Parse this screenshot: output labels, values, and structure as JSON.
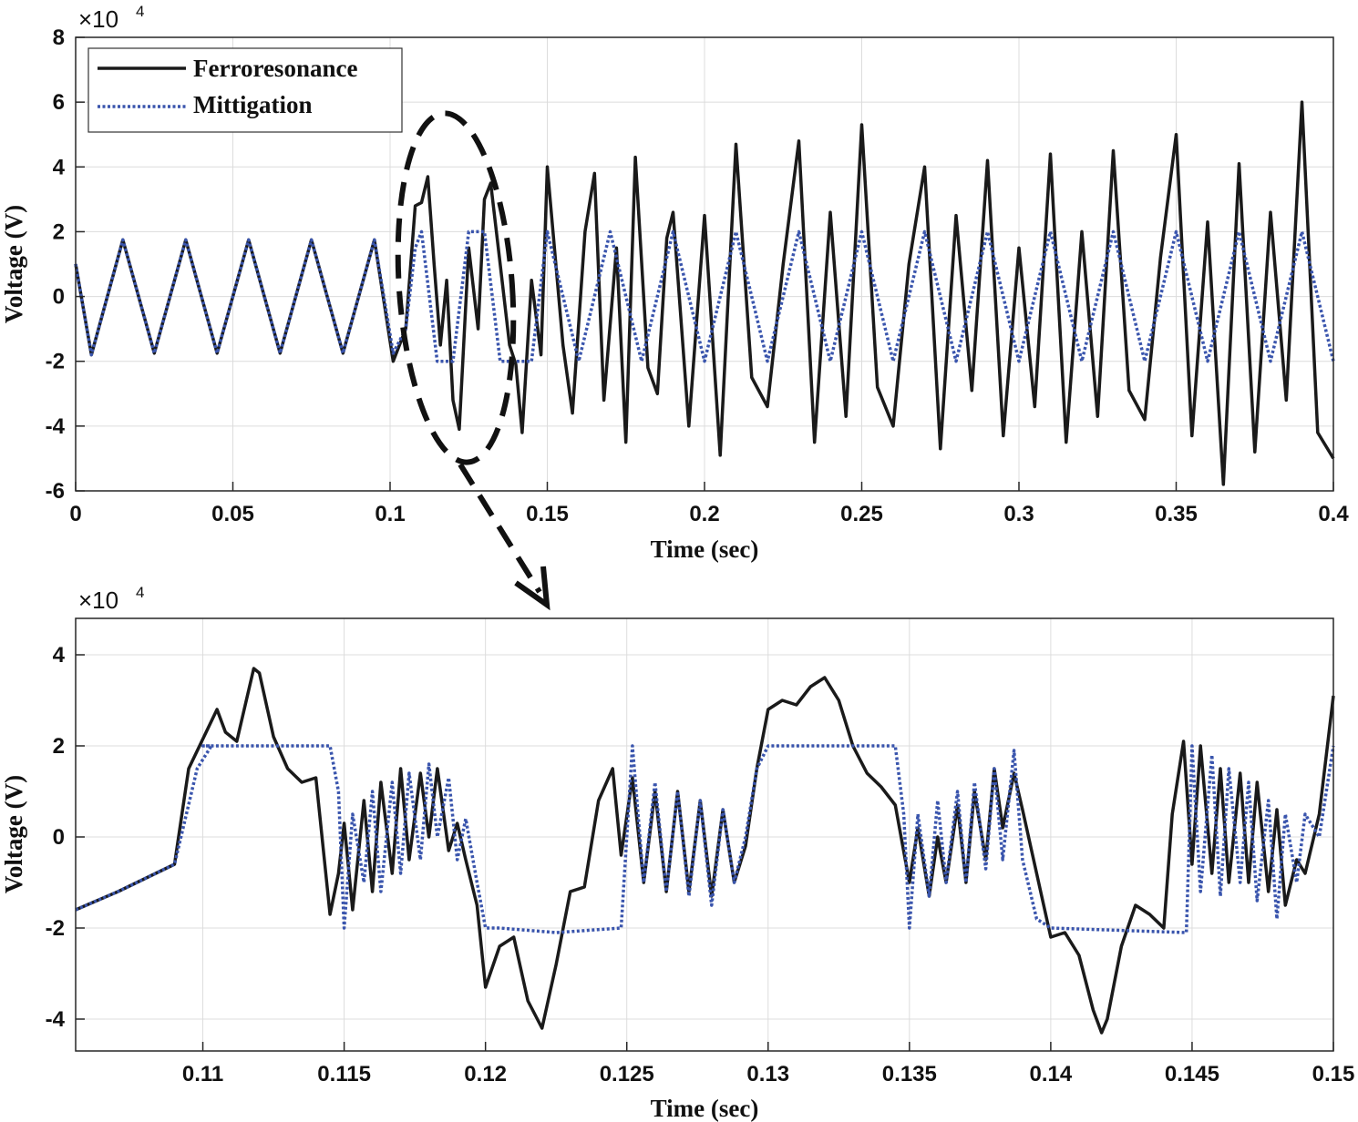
{
  "chart_data": [
    {
      "type": "line",
      "panel": "top",
      "title": "",
      "xlabel": "Time (sec)",
      "ylabel": "Voltage (V)",
      "y_exponent_base": "×10",
      "y_exponent_power": "4",
      "xlim": [
        0,
        0.4
      ],
      "ylim": [
        -6,
        8
      ],
      "xticks": [
        0,
        0.05,
        0.1,
        0.15,
        0.2,
        0.25,
        0.3,
        0.35,
        0.4
      ],
      "xtick_labels": [
        "0",
        "0.05",
        "0.1",
        "0.15",
        "0.2",
        "0.25",
        "0.3",
        "0.35",
        "0.4"
      ],
      "yticks": [
        -6,
        -4,
        -2,
        0,
        2,
        4,
        6,
        8
      ],
      "ytick_labels": [
        "-6",
        "-4",
        "-2",
        "0",
        "2",
        "4",
        "6",
        "8"
      ],
      "grid": true,
      "legend": {
        "position": "top-left",
        "entries": [
          "Ferroresonance",
          "Mittigation"
        ]
      },
      "series": [
        {
          "name": "Ferroresonance",
          "color": "#1a1a1a",
          "style": "solid",
          "x": [
            0,
            0.005,
            0.015,
            0.025,
            0.035,
            0.045,
            0.055,
            0.065,
            0.075,
            0.085,
            0.095,
            0.101,
            0.105,
            0.108,
            0.11,
            0.112,
            0.114,
            0.116,
            0.118,
            0.12,
            0.122,
            0.125,
            0.128,
            0.13,
            0.132,
            0.135,
            0.138,
            0.14,
            0.142,
            0.145,
            0.148,
            0.15,
            0.155,
            0.158,
            0.162,
            0.165,
            0.168,
            0.172,
            0.175,
            0.178,
            0.182,
            0.185,
            0.188,
            0.19,
            0.195,
            0.2,
            0.205,
            0.21,
            0.215,
            0.22,
            0.225,
            0.23,
            0.235,
            0.24,
            0.245,
            0.25,
            0.255,
            0.26,
            0.265,
            0.27,
            0.275,
            0.28,
            0.285,
            0.29,
            0.295,
            0.3,
            0.305,
            0.31,
            0.315,
            0.32,
            0.325,
            0.33,
            0.335,
            0.34,
            0.345,
            0.35,
            0.355,
            0.36,
            0.365,
            0.37,
            0.375,
            0.38,
            0.385,
            0.39,
            0.395,
            0.4
          ],
          "values": [
            1.0,
            -1.8,
            1.75,
            -1.75,
            1.75,
            -1.75,
            1.75,
            -1.75,
            1.75,
            -1.75,
            1.75,
            -2.0,
            -1.0,
            2.8,
            2.9,
            3.7,
            1.0,
            -1.5,
            0.5,
            -3.2,
            -4.1,
            1.5,
            -1.0,
            3.0,
            3.5,
            1.0,
            -1.5,
            -2.1,
            -4.2,
            0.5,
            -1.8,
            4.0,
            -1.5,
            -3.6,
            2.0,
            3.8,
            -3.2,
            1.5,
            -4.5,
            4.3,
            -2.2,
            -3.0,
            1.8,
            2.6,
            -4.0,
            2.5,
            -4.9,
            4.7,
            -2.5,
            -3.4,
            1.0,
            4.8,
            -4.5,
            2.6,
            -3.7,
            5.3,
            -2.8,
            -4.0,
            1.0,
            4.0,
            -4.7,
            2.5,
            -2.9,
            4.2,
            -4.3,
            1.5,
            -3.4,
            4.4,
            -4.5,
            2.0,
            -3.7,
            4.5,
            -2.9,
            -3.8,
            1.2,
            5.0,
            -4.3,
            2.3,
            -5.8,
            4.1,
            -4.8,
            2.6,
            -3.2,
            6.0,
            -4.2,
            -5.0
          ]
        },
        {
          "name": "Mittigation",
          "color": "#3a55ad",
          "style": "dotted",
          "x": [
            0,
            0.005,
            0.015,
            0.025,
            0.035,
            0.045,
            0.055,
            0.065,
            0.075,
            0.085,
            0.095,
            0.101,
            0.105,
            0.108,
            0.11,
            0.115,
            0.12,
            0.125,
            0.13,
            0.135,
            0.14,
            0.145,
            0.15,
            0.16,
            0.17,
            0.18,
            0.19,
            0.2,
            0.21,
            0.22,
            0.23,
            0.24,
            0.25,
            0.26,
            0.27,
            0.28,
            0.29,
            0.3,
            0.31,
            0.32,
            0.33,
            0.34,
            0.35,
            0.36,
            0.37,
            0.38,
            0.39,
            0.4
          ],
          "values": [
            1.0,
            -1.8,
            1.75,
            -1.75,
            1.75,
            -1.75,
            1.75,
            -1.75,
            1.75,
            -1.75,
            1.75,
            -1.75,
            -1.0,
            1.5,
            2.0,
            -2.0,
            -2.0,
            2.0,
            2.0,
            -2.0,
            -2.0,
            -2.0,
            2.0,
            -2.0,
            2.0,
            -2.0,
            2.0,
            -2.0,
            2.0,
            -2.0,
            2.0,
            -2.0,
            2.0,
            -2.0,
            2.0,
            -2.0,
            2.0,
            -2.0,
            2.0,
            -2.0,
            2.0,
            -2.0,
            2.0,
            -2.0,
            2.0,
            -2.0,
            2.0,
            -2.0
          ]
        }
      ]
    },
    {
      "type": "line",
      "panel": "bottom (zoom)",
      "title": "",
      "xlabel": "Time (sec)",
      "ylabel": "Voltage (V)",
      "y_exponent_base": "×10",
      "y_exponent_power": "4",
      "xlim": [
        0.1055,
        0.15
      ],
      "ylim": [
        -4.7,
        4.8
      ],
      "xticks": [
        0.11,
        0.115,
        0.12,
        0.125,
        0.13,
        0.135,
        0.14,
        0.145,
        0.15
      ],
      "xtick_labels": [
        "0.11",
        "0.115",
        "0.12",
        "0.125",
        "0.13",
        "0.135",
        "0.14",
        "0.145",
        "0.15"
      ],
      "yticks": [
        -4,
        -2,
        0,
        2,
        4
      ],
      "ytick_labels": [
        "-4",
        "-2",
        "0",
        "2",
        "4"
      ],
      "grid": true,
      "series": [
        {
          "name": "Ferroresonance",
          "color": "#1a1a1a",
          "style": "solid",
          "x": [
            0.1055,
            0.107,
            0.109,
            0.1095,
            0.1105,
            0.1108,
            0.1112,
            0.1118,
            0.112,
            0.1125,
            0.113,
            0.1135,
            0.114,
            0.1145,
            0.1148,
            0.115,
            0.1153,
            0.1157,
            0.116,
            0.1163,
            0.1167,
            0.117,
            0.1173,
            0.1177,
            0.118,
            0.1183,
            0.1187,
            0.119,
            0.1193,
            0.1197,
            0.12,
            0.1205,
            0.121,
            0.1215,
            0.122,
            0.1225,
            0.123,
            0.1235,
            0.124,
            0.1245,
            0.1248,
            0.1252,
            0.1256,
            0.126,
            0.1264,
            0.1268,
            0.1272,
            0.1276,
            0.128,
            0.1284,
            0.1288,
            0.1292,
            0.1296,
            0.13,
            0.1305,
            0.131,
            0.1315,
            0.132,
            0.1325,
            0.133,
            0.1335,
            0.134,
            0.1345,
            0.135,
            0.1353,
            0.1357,
            0.136,
            0.1363,
            0.1367,
            0.137,
            0.1373,
            0.1377,
            0.138,
            0.1383,
            0.1387,
            0.139,
            0.1395,
            0.14,
            0.1405,
            0.141,
            0.1415,
            0.1418,
            0.142,
            0.1425,
            0.143,
            0.1435,
            0.144,
            0.1443,
            0.1447,
            0.145,
            0.1453,
            0.1457,
            0.146,
            0.1463,
            0.1467,
            0.147,
            0.1473,
            0.1477,
            0.148,
            0.1483,
            0.1487,
            0.149,
            0.1495,
            0.15
          ],
          "values": [
            -1.6,
            -1.2,
            -0.6,
            1.5,
            2.8,
            2.3,
            2.1,
            3.7,
            3.6,
            2.2,
            1.5,
            1.2,
            1.3,
            -1.7,
            -0.8,
            0.3,
            -1.6,
            0.8,
            -1.2,
            1.2,
            -0.8,
            1.5,
            -0.5,
            1.4,
            0.0,
            1.5,
            -0.3,
            0.3,
            -0.5,
            -1.5,
            -3.3,
            -2.4,
            -2.2,
            -3.6,
            -4.2,
            -2.8,
            -1.2,
            -1.1,
            0.8,
            1.5,
            -0.4,
            1.3,
            -1.0,
            1.0,
            -1.2,
            1.0,
            -1.2,
            0.8,
            -1.3,
            0.6,
            -1.0,
            -0.2,
            1.5,
            2.8,
            3.0,
            2.9,
            3.3,
            3.5,
            3.0,
            2.0,
            1.4,
            1.1,
            0.7,
            -1.0,
            0.2,
            -1.3,
            0.0,
            -1.0,
            0.7,
            -1.0,
            1.0,
            -0.5,
            1.5,
            0.2,
            1.4,
            0.6,
            -0.8,
            -2.2,
            -2.1,
            -2.6,
            -3.8,
            -4.3,
            -4.0,
            -2.4,
            -1.5,
            -1.7,
            -2.0,
            0.5,
            2.1,
            -0.6,
            2.0,
            -0.8,
            1.5,
            -1.0,
            1.4,
            -1.0,
            1.2,
            -1.2,
            0.6,
            -1.5,
            -0.5,
            -0.8,
            0.5,
            3.1
          ]
        },
        {
          "name": "Mittigation",
          "color": "#3a55ad",
          "style": "dotted",
          "x": [
            0.1055,
            0.107,
            0.109,
            0.1098,
            0.1103,
            0.11,
            0.1145,
            0.1148,
            0.115,
            0.1153,
            0.1157,
            0.116,
            0.1163,
            0.1167,
            0.117,
            0.1173,
            0.1177,
            0.118,
            0.1183,
            0.1187,
            0.119,
            0.1193,
            0.1197,
            0.12,
            0.1205,
            0.1225,
            0.1248,
            0.1252,
            0.1256,
            0.126,
            0.1264,
            0.1268,
            0.1272,
            0.1276,
            0.128,
            0.1284,
            0.1288,
            0.1292,
            0.1296,
            0.13,
            0.1345,
            0.1348,
            0.135,
            0.1353,
            0.1357,
            0.136,
            0.1363,
            0.1367,
            0.137,
            0.1373,
            0.1377,
            0.138,
            0.1383,
            0.1387,
            0.139,
            0.1395,
            0.14,
            0.1448,
            0.145,
            0.1453,
            0.1457,
            0.146,
            0.1463,
            0.1467,
            0.147,
            0.1473,
            0.1477,
            0.148,
            0.1483,
            0.1487,
            0.149,
            0.1495,
            0.15
          ],
          "values": [
            -1.6,
            -1.2,
            -0.6,
            1.5,
            2.0,
            2.0,
            2.0,
            1.0,
            -2.0,
            0.5,
            -1.0,
            1.0,
            -1.2,
            1.2,
            -0.8,
            1.4,
            -0.5,
            1.6,
            0.0,
            1.3,
            -0.5,
            0.4,
            -1.0,
            -2.0,
            -2.0,
            -2.1,
            -2.0,
            2.0,
            -1.0,
            1.2,
            -1.2,
            1.0,
            -1.3,
            0.8,
            -1.5,
            0.6,
            -1.0,
            0.0,
            1.5,
            2.0,
            2.0,
            0.5,
            -2.0,
            0.5,
            -1.3,
            0.8,
            -1.0,
            1.0,
            -1.0,
            1.2,
            -0.7,
            1.5,
            -0.5,
            1.9,
            -0.5,
            -1.8,
            -2.0,
            -2.1,
            2.0,
            -1.2,
            1.8,
            -1.3,
            1.5,
            -1.0,
            1.2,
            -1.4,
            0.8,
            -1.8,
            0.5,
            -1.0,
            0.5,
            0.0,
            2.0
          ]
        }
      ]
    }
  ]
}
